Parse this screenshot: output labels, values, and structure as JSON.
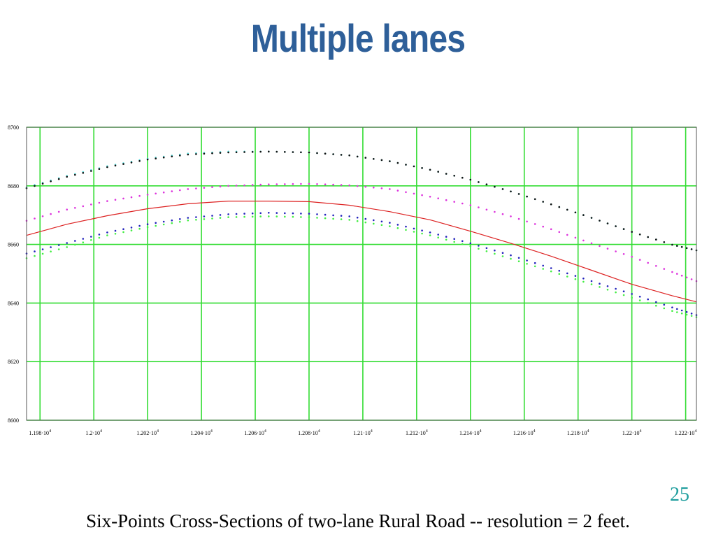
{
  "slide": {
    "title": "Multiple lanes",
    "page_number": "25",
    "caption": "Six-Points Cross-Sections of two-lane Rural Road -- resolution = 2 feet."
  },
  "colors": {
    "title": "#2e5f99",
    "page_number": "#1f9e9e",
    "grid": "#33dd33",
    "frame": "#555555"
  },
  "chart_data": {
    "type": "scatter",
    "grid": true,
    "legend": "none",
    "xlim": [
      11975,
      12224
    ],
    "ylim": [
      8600,
      8700
    ],
    "x_ticks": [
      11980,
      12000,
      12020,
      12040,
      12060,
      12080,
      12100,
      12120,
      12140,
      12160,
      12180,
      12200,
      12220
    ],
    "x_tick_labels": [
      {
        "base": "1.198·10",
        "exp": "4"
      },
      {
        "base": "1.2·10",
        "exp": "4"
      },
      {
        "base": "1.202·10",
        "exp": "4"
      },
      {
        "base": "1.204·10",
        "exp": "4"
      },
      {
        "base": "1.206·10",
        "exp": "4"
      },
      {
        "base": "1.208·10",
        "exp": "4"
      },
      {
        "base": "1.21·10",
        "exp": "4"
      },
      {
        "base": "1.212·10",
        "exp": "4"
      },
      {
        "base": "1.214·10",
        "exp": "4"
      },
      {
        "base": "1.216·10",
        "exp": "4"
      },
      {
        "base": "1.218·10",
        "exp": "4"
      },
      {
        "base": "1.22·10",
        "exp": "4"
      },
      {
        "base": "1.222·10",
        "exp": "4"
      }
    ],
    "y_ticks": [
      8600,
      8620,
      8640,
      8660,
      8680,
      8700
    ],
    "y_tick_labels": [
      "8600",
      "8620",
      "8640",
      "8660",
      "8680",
      "8700"
    ],
    "series": [
      {
        "mode": "dots",
        "color": "#55dddd",
        "x": [
          11975,
          11990,
          12005,
          12020,
          12035,
          12050,
          12065,
          12080,
          12095,
          12110,
          12125,
          12140,
          12155,
          12170,
          12185,
          12200,
          12215,
          12224
        ],
        "y": [
          8679.5,
          8683.4,
          8686.7,
          8689.3,
          8691,
          8691.7,
          8691.7,
          8691.4,
          8690.4,
          8688.4,
          8685.5,
          8682.1,
          8678.1,
          8673.7,
          8669.1,
          8664.3,
          8659.9,
          8658
        ]
      },
      {
        "mode": "dots",
        "color": "#111111",
        "x": [
          11975,
          11990,
          12005,
          12020,
          12035,
          12050,
          12065,
          12080,
          12095,
          12110,
          12125,
          12140,
          12155,
          12170,
          12185,
          12200,
          12215,
          12224
        ],
        "y": [
          8679.2,
          8683.1,
          8686.4,
          8689,
          8690.7,
          8691.4,
          8691.7,
          8691.4,
          8690.4,
          8688.4,
          8685.5,
          8682.1,
          8678.1,
          8673.7,
          8669.1,
          8664.3,
          8659.9,
          8658
        ]
      },
      {
        "mode": "dots",
        "color": "#dd33dd",
        "x": [
          11975,
          11990,
          12005,
          12020,
          12035,
          12050,
          12065,
          12080,
          12095,
          12110,
          12125,
          12140,
          12155,
          12170,
          12185,
          12200,
          12215,
          12224
        ],
        "y": [
          8668.1,
          8671.9,
          8674.8,
          8677,
          8678.9,
          8680,
          8680.5,
          8680.7,
          8680.2,
          8678.9,
          8676.3,
          8673.4,
          8669.6,
          8665.2,
          8660.4,
          8655.8,
          8650.6,
          8647.5
        ]
      },
      {
        "mode": "line",
        "color": "#dd2222",
        "x": [
          11975,
          11990,
          12005,
          12020,
          12035,
          12050,
          12065,
          12080,
          12095,
          12110,
          12125,
          12140,
          12155,
          12170,
          12185,
          12200,
          12215,
          12224
        ],
        "y": [
          8663.1,
          8666.9,
          8669.8,
          8672.2,
          8673.9,
          8674.8,
          8674.8,
          8674.6,
          8673.4,
          8671.2,
          8668.4,
          8664.5,
          8660.4,
          8656,
          8651.2,
          8646.4,
          8642.5,
          8640.4
        ]
      },
      {
        "mode": "dots",
        "color": "#2222bb",
        "x": [
          11975,
          11990,
          12005,
          12020,
          12035,
          12050,
          12065,
          12080,
          12095,
          12110,
          12125,
          12140,
          12155,
          12170,
          12185,
          12200,
          12215,
          12224
        ],
        "y": [
          8656.9,
          8660.5,
          8664.1,
          8666.9,
          8669.1,
          8670.3,
          8670.8,
          8670.5,
          8669.6,
          8667.4,
          8664.1,
          8660.4,
          8656.3,
          8651.9,
          8647.5,
          8643.1,
          8638.5,
          8635.9
        ]
      },
      {
        "mode": "dots",
        "color": "#44ee44",
        "x": [
          11975,
          11990,
          12005,
          12020,
          12035,
          12050,
          12065,
          12080,
          12095,
          12110,
          12125,
          12140,
          12155,
          12170,
          12185,
          12200,
          12215,
          12224
        ],
        "y": [
          8655.3,
          8659.1,
          8663.1,
          8665.9,
          8668.2,
          8669.3,
          8669.6,
          8669.3,
          8668.4,
          8666.2,
          8663.1,
          8659.4,
          8655.1,
          8650.8,
          8646.4,
          8641.8,
          8637.3,
          8635.2
        ]
      }
    ]
  }
}
